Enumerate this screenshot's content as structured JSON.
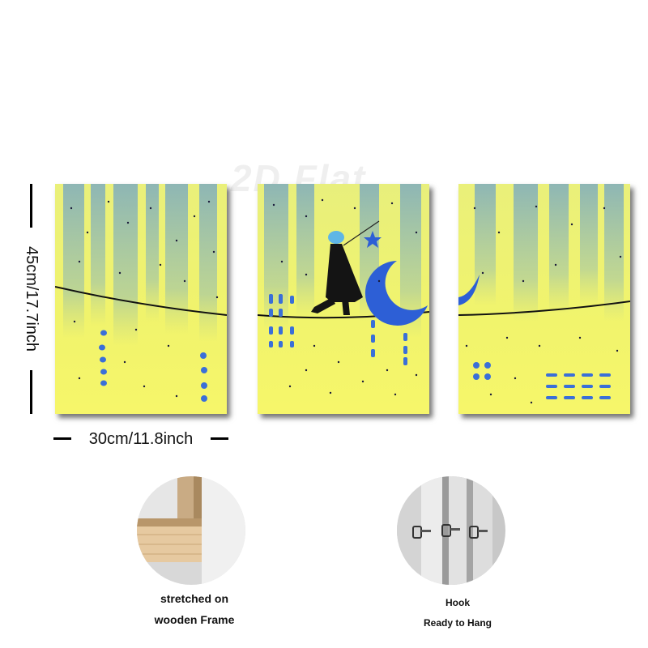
{
  "dimensions": {
    "width_label": "30cm/11.8inch",
    "height_label": "45cm/17.7inch"
  },
  "watermark": "2D Flat",
  "details": {
    "frame_caption_line1": "stretched on",
    "frame_caption_line2": "wooden Frame",
    "hook_caption_line1": "Hook",
    "hook_caption_line2": "Ready to Hang"
  },
  "colors": {
    "canvas_yellow": "#f2f46a",
    "canvas_blue": "#3a6fd8",
    "figure": "#121212"
  }
}
